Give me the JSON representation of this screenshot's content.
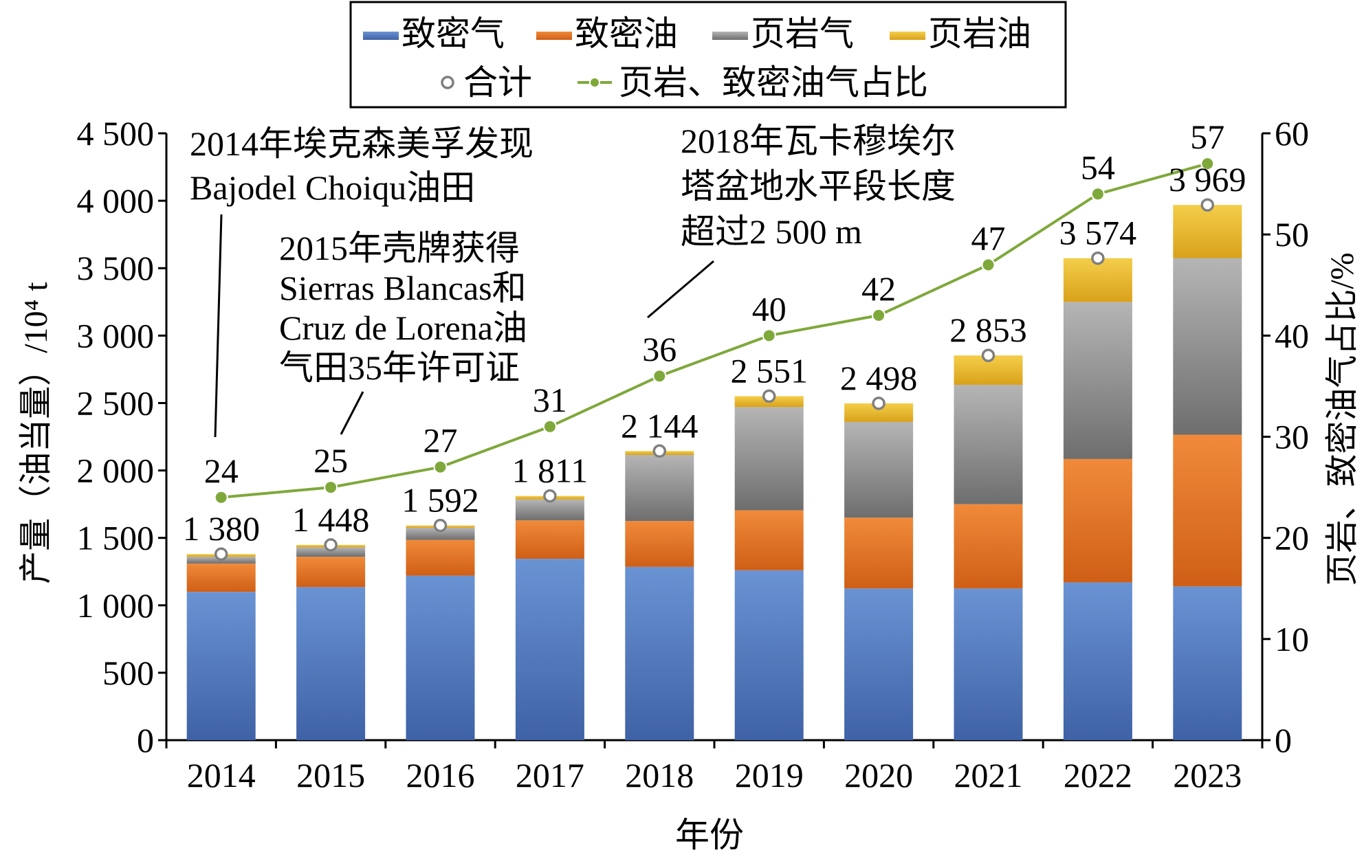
{
  "chart_data": {
    "type": "bar",
    "stacked": true,
    "categories": [
      "2014",
      "2015",
      "2016",
      "2017",
      "2018",
      "2019",
      "2020",
      "2021",
      "2022",
      "2023"
    ],
    "series": [
      {
        "name": "致密气",
        "color": "#4E73B5",
        "values": [
          1100,
          1135,
          1220,
          1345,
          1285,
          1260,
          1125,
          1125,
          1170,
          1140
        ]
      },
      {
        "name": "致密油",
        "color": "#E97A2E",
        "values": [
          210,
          225,
          265,
          285,
          340,
          445,
          525,
          625,
          915,
          1125
        ]
      },
      {
        "name": "页岩气",
        "color": "#8F8F8F",
        "values": [
          50,
          70,
          90,
          155,
          490,
          765,
          710,
          885,
          1165,
          1310
        ]
      },
      {
        "name": "页岩油",
        "color": "#E8B523",
        "values": [
          20,
          18,
          17,
          26,
          29,
          81,
          138,
          218,
          324,
          394
        ]
      }
    ],
    "totals": {
      "name": "合计",
      "values": [
        1380,
        1448,
        1592,
        1811,
        2144,
        2551,
        2498,
        2853,
        3574,
        3969
      ],
      "labels": [
        "1 380",
        "1 448",
        "1 592",
        "1 811",
        "2 144",
        "2 551",
        "2 498",
        "2 853",
        "3 574",
        "3 969"
      ]
    },
    "ratio": {
      "name": "页岩、致密油气占比",
      "color": "#7FA83B",
      "values": [
        24,
        25,
        27,
        31,
        36,
        40,
        42,
        47,
        54,
        57
      ]
    },
    "xlabel": "年份",
    "ylabel": "产量（油当量）/10⁴ t",
    "y2label": "页岩、致密油气占比/%",
    "ylim": [
      0,
      4500
    ],
    "y2lim": [
      0,
      60
    ],
    "yticks": [
      0,
      500,
      1000,
      1500,
      2000,
      2500,
      3000,
      3500,
      4000,
      4500
    ],
    "ytick_labels": [
      "0",
      "500",
      "1 000",
      "1 500",
      "2 000",
      "2 500",
      "3 000",
      "3 500",
      "4 000",
      "4 500"
    ],
    "y2ticks": [
      0,
      10,
      20,
      30,
      40,
      50,
      60
    ],
    "legend_position": "top",
    "annotations": [
      {
        "lines": [
          "2014年埃克森美孚发现",
          "Bajodel Choiqu油田"
        ],
        "target": "2014"
      },
      {
        "lines": [
          "2015年壳牌获得",
          "Sierras Blancas和",
          "Cruz de Lorena油",
          "气田35年许可证"
        ],
        "target": "2015"
      },
      {
        "lines": [
          "2018年瓦卡穆埃尔",
          "塔盆地水平段长度",
          "超过2 500 m"
        ],
        "target": "2018"
      }
    ]
  }
}
